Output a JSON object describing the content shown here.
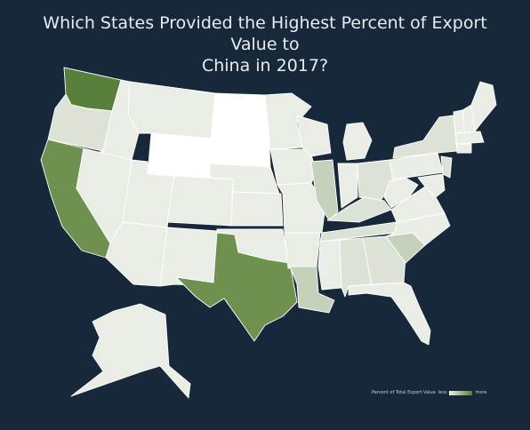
{
  "title_line1": "Which States Provided the Highest Percent of Export Value to",
  "title_line2": "China in 2017?",
  "legend": {
    "label": "Percent of Total Export Value",
    "low": "less",
    "high": "more"
  },
  "colors": {
    "background": "#16283a",
    "base": "#e9ede6",
    "lowest": "#ffffff",
    "light": "#dce3d6",
    "medium": "#c6d1bc",
    "strong": "#6f914f",
    "highest": "#587f3c"
  },
  "states": [
    {
      "id": "WA",
      "level": "highest"
    },
    {
      "id": "CA",
      "level": "strong"
    },
    {
      "id": "TX",
      "level": "strong"
    },
    {
      "id": "WY",
      "level": "lowest"
    },
    {
      "id": "ND",
      "level": "lowest"
    },
    {
      "id": "SD",
      "level": "lowest"
    },
    {
      "id": "IL",
      "level": "medium"
    },
    {
      "id": "LA",
      "level": "medium"
    },
    {
      "id": "SC",
      "level": "medium"
    },
    {
      "id": "AL",
      "level": "light"
    },
    {
      "id": "GA",
      "level": "light"
    },
    {
      "id": "KY",
      "level": "light"
    },
    {
      "id": "NY",
      "level": "light"
    },
    {
      "id": "OR",
      "level": "light"
    },
    {
      "id": "OH",
      "level": "light"
    },
    {
      "id": "NJ",
      "level": "light"
    },
    {
      "id": "TN",
      "level": "light"
    }
  ]
}
